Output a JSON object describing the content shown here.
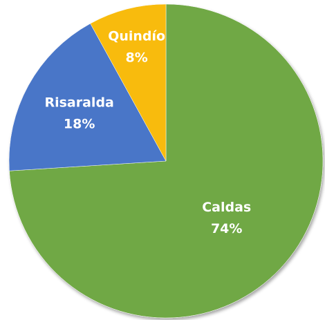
{
  "chart_data": {
    "type": "pie",
    "categories": [
      "Caldas",
      "Risaralda",
      "Quindío"
    ],
    "values": [
      74,
      18,
      8
    ],
    "value_labels": [
      "74%",
      "18%",
      "8%"
    ],
    "colors": [
      "#70a845",
      "#4a76c8",
      "#f8bb0a"
    ]
  }
}
